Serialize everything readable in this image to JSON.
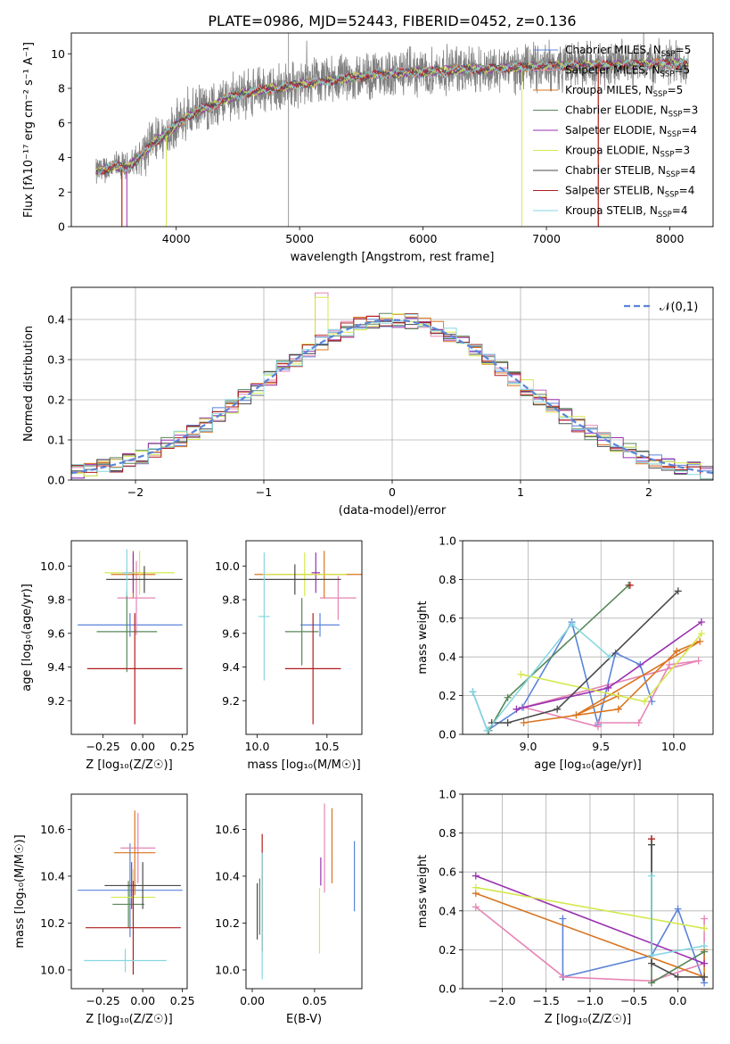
{
  "title": "PLATE=0986, MJD=52443, FIBERID=0452, z=0.136",
  "models": [
    {
      "name": "Chabrier MILES",
      "nssp": "5",
      "color": "#5b84d9"
    },
    {
      "name": "Salpeter MILES",
      "nssp": "5",
      "color": "#e685b5"
    },
    {
      "name": "Kroupa MILES",
      "nssp": "5",
      "color": "#d9741f"
    },
    {
      "name": "Chabrier ELODIE",
      "nssp": "3",
      "color": "#58875a"
    },
    {
      "name": "Salpeter ELODIE",
      "nssp": "4",
      "color": "#9a30b0"
    },
    {
      "name": "Kroupa ELODIE",
      "nssp": "3",
      "color": "#d4e84d"
    },
    {
      "name": "Chabrier STELIB",
      "nssp": "4",
      "color": "#4a4a4a"
    },
    {
      "name": "Salpeter STELIB",
      "nssp": "4",
      "color": "#b01c1c"
    },
    {
      "name": "Kroupa STELIB",
      "nssp": "4",
      "color": "#86d7e0"
    }
  ],
  "chart_data": [
    {
      "id": "spectrum",
      "type": "line",
      "xlabel": "wavelength [Angstrom, rest frame]",
      "ylabel": "Flux [fλ10⁻¹⁷ erg cm⁻² s⁻¹ A⁻¹]",
      "xlim": [
        3150,
        8350
      ],
      "ylim": [
        0,
        11.2
      ],
      "xticks": [
        4000,
        5000,
        6000,
        7000,
        8000
      ],
      "yticks": [
        0,
        2,
        4,
        6,
        8,
        10
      ],
      "observed": {
        "color": "#808080",
        "x_range": [
          3350,
          8150
        ]
      },
      "continuum_x": [
        3350,
        3400,
        3500,
        3600,
        3700,
        3800,
        3900,
        4000,
        4100,
        4200,
        4300,
        4400,
        4500,
        4600,
        4700,
        4800,
        4900,
        5000,
        5200,
        5400,
        5600,
        5800,
        6000,
        6200,
        6400,
        6600,
        6800,
        7000,
        7200,
        7400,
        7600,
        7800,
        8000,
        8150
      ],
      "continuum_y": [
        3.1,
        3.3,
        3.5,
        3.4,
        4.0,
        4.7,
        5.3,
        5.9,
        6.4,
        6.8,
        7.0,
        7.4,
        7.6,
        7.8,
        7.9,
        8.0,
        8.1,
        8.25,
        8.4,
        8.6,
        8.75,
        8.9,
        8.95,
        9.05,
        9.1,
        9.15,
        9.2,
        9.3,
        9.3,
        9.35,
        9.35,
        9.4,
        9.45,
        9.45
      ]
    },
    {
      "id": "residuals",
      "type": "histogram",
      "xlabel": "(data-model)/error",
      "ylabel": "Normed distribution",
      "xlim": [
        -2.5,
        2.5
      ],
      "ylim": [
        0,
        0.48
      ],
      "xticks": [
        -2,
        -1,
        0,
        1,
        2
      ],
      "yticks": [
        0.0,
        0.1,
        0.2,
        0.3,
        0.4
      ],
      "bin_width": 0.1,
      "grid": true,
      "legend": "top-right",
      "gauss_label": "𝒩(0,1)",
      "gauss_color": "#5b84d9"
    },
    {
      "id": "age_vs_Z",
      "type": "scatter",
      "xlabel": "Z [log₁₀(Z/Z☉)]",
      "ylabel": "age  [log₁₀(age/yr)]",
      "xlim": [
        -0.45,
        0.28
      ],
      "ylim": [
        9.0,
        10.15
      ],
      "xticks": [
        -0.25,
        0.0,
        0.25
      ],
      "yticks": [
        9.2,
        9.4,
        9.6,
        9.8,
        10.0
      ],
      "points": [
        {
          "x": -0.08,
          "y": 9.65,
          "xe": 0.33,
          "ye": 0.07,
          "m": 0
        },
        {
          "x": -0.04,
          "y": 9.81,
          "xe": 0.12,
          "ye": 0.22,
          "m": 1
        },
        {
          "x": -0.06,
          "y": 9.95,
          "xe": 0.14,
          "ye": 0.14,
          "m": 2
        },
        {
          "x": -0.1,
          "y": 9.61,
          "xe": 0.19,
          "ye": 0.24,
          "m": 3
        },
        {
          "x": -0.06,
          "y": 9.96,
          "xe": 0.04,
          "ye": 0.12,
          "m": 4
        },
        {
          "x": -0.02,
          "y": 9.96,
          "xe": 0.22,
          "ye": 0.13,
          "m": 5
        },
        {
          "x": 0.01,
          "y": 9.92,
          "xe": 0.24,
          "ye": 0.08,
          "m": 6
        },
        {
          "x": -0.05,
          "y": 9.39,
          "xe": 0.3,
          "ye": 0.33,
          "m": 7
        },
        {
          "x": -0.1,
          "y": 9.96,
          "xe": 0.03,
          "ye": 0.14,
          "m": 8
        }
      ]
    },
    {
      "id": "age_vs_mass",
      "type": "scatter",
      "xlabel": "mass [log₁₀(M/M☉)]",
      "ylabel": "",
      "xlim": [
        9.92,
        10.75
      ],
      "ylim": [
        9.0,
        10.15
      ],
      "xticks": [
        10.0,
        10.5
      ],
      "yticks": [
        9.2,
        9.4,
        9.6,
        9.8,
        10.0
      ],
      "points": [
        {
          "x": 10.45,
          "y": 9.65,
          "xe": 0.14,
          "ye": 0.07,
          "m": 0
        },
        {
          "x": 10.58,
          "y": 9.81,
          "xe": 0.13,
          "ye": 0.13,
          "m": 1
        },
        {
          "x": 10.48,
          "y": 9.95,
          "xe": 0.5,
          "ye": 0.14,
          "m": 2
        },
        {
          "x": 10.32,
          "y": 9.61,
          "xe": 0.12,
          "ye": 0.2,
          "m": 3
        },
        {
          "x": 10.42,
          "y": 9.96,
          "xe": 0.03,
          "ye": 0.12,
          "m": 4
        },
        {
          "x": 10.34,
          "y": 9.95,
          "xe": 0.3,
          "ye": 0.13,
          "m": 5
        },
        {
          "x": 10.27,
          "y": 9.92,
          "xe": 0.33,
          "ye": 0.09,
          "m": 6
        },
        {
          "x": 10.4,
          "y": 9.39,
          "xe": 0.2,
          "ye": 0.33,
          "m": 7
        },
        {
          "x": 10.05,
          "y": 9.7,
          "xe": 0.04,
          "ye": 0.38,
          "m": 8
        }
      ]
    },
    {
      "id": "mass_weight_vs_age",
      "type": "line",
      "xlabel": "age  [log₁₀(age/yr)]",
      "ylabel": "mass weight",
      "xlim": [
        8.55,
        10.27
      ],
      "ylim": [
        0,
        1.0
      ],
      "xticks": [
        9.0,
        9.5,
        10.0
      ],
      "yticks": [
        0.0,
        0.2,
        0.4,
        0.6,
        0.8,
        1.0
      ],
      "grid": true,
      "series": [
        {
          "m": 0,
          "x": [
            8.62,
            8.72,
            8.96,
            9.3,
            9.48,
            9.6,
            9.77,
            9.85
          ],
          "y": [
            0.22,
            0.02,
            0.14,
            0.58,
            0.05,
            0.42,
            0.36,
            0.17
          ]
        },
        {
          "m": 1,
          "x": [
            9.48,
            9.76,
            9.97,
            10.17,
            8.97,
            9.48
          ],
          "y": [
            0.06,
            0.06,
            0.36,
            0.38,
            0.14,
            0.04
          ]
        },
        {
          "m": 2,
          "x": [
            8.97,
            9.62,
            10.02,
            10.18,
            9.33,
            9.62
          ],
          "y": [
            0.06,
            0.13,
            0.43,
            0.48,
            0.1,
            0.2
          ]
        },
        {
          "m": 3,
          "x": [
            8.73,
            8.86,
            9.69
          ],
          "y": [
            0.02,
            0.19,
            0.77
          ]
        },
        {
          "m": 4,
          "x": [
            8.92,
            9.55,
            10.19
          ],
          "y": [
            0.13,
            0.24,
            0.58
          ]
        },
        {
          "m": 5,
          "x": [
            8.95,
            9.8,
            10.19
          ],
          "y": [
            0.31,
            0.17,
            0.52
          ]
        },
        {
          "m": 6,
          "x": [
            8.75,
            8.86,
            9.2,
            10.03
          ],
          "y": [
            0.06,
            0.06,
            0.13,
            0.74
          ]
        },
        {
          "m": 7,
          "x": [
            9.7
          ],
          "y": [
            0.77
          ]
        },
        {
          "m": 8,
          "x": [
            8.62,
            8.72,
            9.3,
            9.56
          ],
          "y": [
            0.22,
            0.02,
            0.57,
            0.4
          ]
        }
      ]
    },
    {
      "id": "mass_vs_Z",
      "type": "scatter",
      "xlabel": "Z [log₁₀(Z/Z☉)]",
      "ylabel": "mass [log₁₀(M/M☉)]",
      "xlim": [
        -0.45,
        0.28
      ],
      "ylim": [
        9.92,
        10.75
      ],
      "xticks": [
        -0.25,
        0.0,
        0.25
      ],
      "yticks": [
        10.0,
        10.2,
        10.4,
        10.6
      ],
      "points": [
        {
          "x": -0.08,
          "y": 10.34,
          "xe": 0.33,
          "ye": 0.2,
          "m": 0
        },
        {
          "x": -0.03,
          "y": 10.52,
          "xe": 0.11,
          "ye": 0.15,
          "m": 1
        },
        {
          "x": -0.05,
          "y": 10.5,
          "xe": 0.13,
          "ye": 0.18,
          "m": 2
        },
        {
          "x": -0.09,
          "y": 10.28,
          "xe": 0.1,
          "ye": 0.1,
          "m": 3
        },
        {
          "x": -0.07,
          "y": 10.36,
          "xe": 0.03,
          "ye": 0.1,
          "m": 4
        },
        {
          "x": -0.06,
          "y": 10.31,
          "xe": 0.14,
          "ye": 0.12,
          "m": 5
        },
        {
          "x": 0.0,
          "y": 10.36,
          "xe": 0.24,
          "ye": 0.1,
          "m": 6
        },
        {
          "x": -0.06,
          "y": 10.18,
          "xe": 0.3,
          "ye": 0.2,
          "m": 7
        },
        {
          "x": -0.11,
          "y": 10.04,
          "xe": 0.26,
          "ye": 0.05,
          "m": 8
        }
      ]
    },
    {
      "id": "mass_vs_EBV",
      "type": "scatter",
      "xlabel": "E(B-V)",
      "ylabel": "",
      "xlim": [
        -0.005,
        0.088
      ],
      "ylim": [
        9.92,
        10.75
      ],
      "xticks": [
        0.0,
        0.05
      ],
      "yticks": [
        10.0,
        10.2,
        10.4,
        10.6
      ],
      "points": [
        {
          "x": 0.082,
          "y": 10.4,
          "xe": 0,
          "ye": 0.15,
          "m": 0
        },
        {
          "x": 0.058,
          "y": 10.52,
          "xe": 0,
          "ye": 0.19,
          "m": 1
        },
        {
          "x": 0.064,
          "y": 10.53,
          "xe": 0,
          "ye": 0.16,
          "m": 2
        },
        {
          "x": 0.006,
          "y": 10.27,
          "xe": 0,
          "ye": 0.12,
          "m": 3
        },
        {
          "x": 0.055,
          "y": 10.42,
          "xe": 0,
          "ye": 0.06,
          "m": 4
        },
        {
          "x": 0.054,
          "y": 10.21,
          "xe": 0,
          "ye": 0.14,
          "m": 5
        },
        {
          "x": 0.004,
          "y": 10.25,
          "xe": 0,
          "ye": 0.12,
          "m": 6
        },
        {
          "x": 0.008,
          "y": 10.33,
          "xe": 0,
          "ye": 0.25,
          "m": 7
        },
        {
          "x": 0.008,
          "y": 10.23,
          "xe": 0,
          "ye": 0.27,
          "m": 8
        }
      ]
    },
    {
      "id": "mass_weight_vs_Z",
      "type": "line",
      "xlabel": "Z [log₁₀(Z/Z☉)]",
      "ylabel": "mass weight",
      "xlim": [
        -2.45,
        0.4
      ],
      "ylim": [
        0,
        1.0
      ],
      "xticks": [
        -2.0,
        -1.5,
        -1.0,
        -0.5,
        0.0
      ],
      "yticks": [
        0.0,
        0.2,
        0.4,
        0.6,
        0.8,
        1.0
      ],
      "grid": true,
      "series": [
        {
          "m": 0,
          "x": [
            -1.31,
            -1.31,
            -0.3,
            0.0,
            0.3
          ],
          "y": [
            0.36,
            0.06,
            0.17,
            0.41,
            0.03
          ]
        },
        {
          "m": 1,
          "x": [
            -2.3,
            -1.3,
            -0.3,
            0.3,
            0.3
          ],
          "y": [
            0.42,
            0.06,
            0.04,
            0.13,
            0.36
          ]
        },
        {
          "m": 2,
          "x": [
            -2.3,
            0.3,
            0.3
          ],
          "y": [
            0.49,
            0.06,
            0.2
          ]
        },
        {
          "m": 3,
          "x": [
            -0.3,
            -0.3,
            0.3
          ],
          "y": [
            0.77,
            0.03,
            0.19
          ]
        },
        {
          "m": 4,
          "x": [
            -2.3,
            0.3
          ],
          "y": [
            0.58,
            0.13
          ]
        },
        {
          "m": 5,
          "x": [
            -2.3,
            0.3
          ],
          "y": [
            0.52,
            0.31
          ]
        },
        {
          "m": 6,
          "x": [
            -0.3,
            -0.3,
            0.0,
            0.3
          ],
          "y": [
            0.74,
            0.13,
            0.06,
            0.06
          ]
        },
        {
          "m": 7,
          "x": [
            -0.3
          ],
          "y": [
            0.77
          ]
        },
        {
          "m": 8,
          "x": [
            -0.3,
            -0.3,
            0.3
          ],
          "y": [
            0.58,
            0.17,
            0.22
          ]
        }
      ]
    }
  ]
}
